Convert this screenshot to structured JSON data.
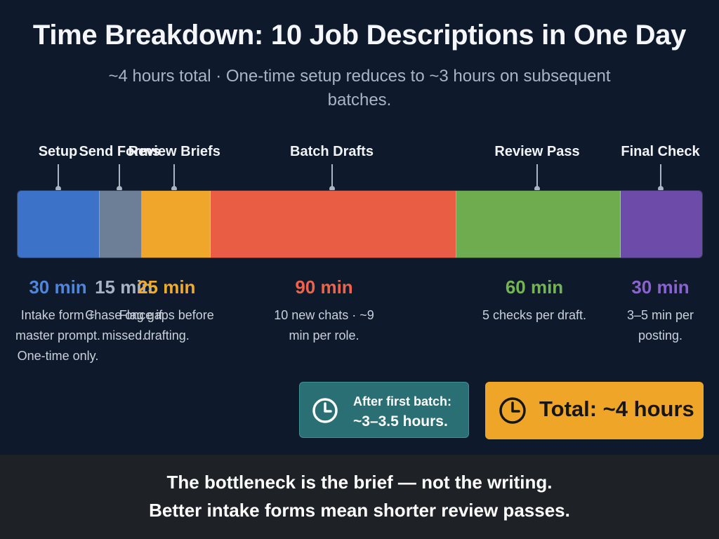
{
  "title": "Time Breakdown: 10 Job Descriptions in One Day",
  "subtitle": "~4 hours total  ·  One-time setup reduces to ~3 hours on subsequent batches.",
  "chart_data": {
    "type": "bar",
    "orientation": "horizontal-stacked",
    "total_minutes": 250,
    "segments": [
      {
        "label": "Setup",
        "value": 30,
        "value_label": "30 min",
        "color": "#3d72c9",
        "text_color": "#4f86db",
        "desc": "Intake form + master prompt. One-time only."
      },
      {
        "label": "Send Forms",
        "value": 15,
        "value_label": "15 min",
        "color": "#6c7f96",
        "text_color": "#a8b4c4",
        "desc": "Chase once if missed."
      },
      {
        "label": "Review Briefs",
        "value": 25,
        "value_label": "25 min",
        "color": "#efa62a",
        "text_color": "#f2aa2c",
        "desc": "Flag gaps before drafting."
      },
      {
        "label": "Batch Drafts",
        "value": 90,
        "value_label": "90 min",
        "color": "#e85d44",
        "text_color": "#ee634a",
        "desc": "10 new chats · ~9 min per role."
      },
      {
        "label": "Review Pass",
        "value": 60,
        "value_label": "60 min",
        "color": "#6fac4f",
        "text_color": "#74b454",
        "desc": "5 checks per draft."
      },
      {
        "label": "Final Check",
        "value": 30,
        "value_label": "30 min",
        "color": "#6d4ca9",
        "text_color": "#8a63cf",
        "desc": "3–5 min per posting."
      }
    ]
  },
  "after_batch": {
    "line1": "After first batch:",
    "line2": "~3–3.5 hours.",
    "icon": "clock-icon"
  },
  "total": {
    "text": "Total: ~4 hours",
    "icon": "clock-icon"
  },
  "footer": {
    "line1": "The bottleneck is the brief — not the writing.",
    "line2": "Better intake forms mean shorter review passes."
  }
}
